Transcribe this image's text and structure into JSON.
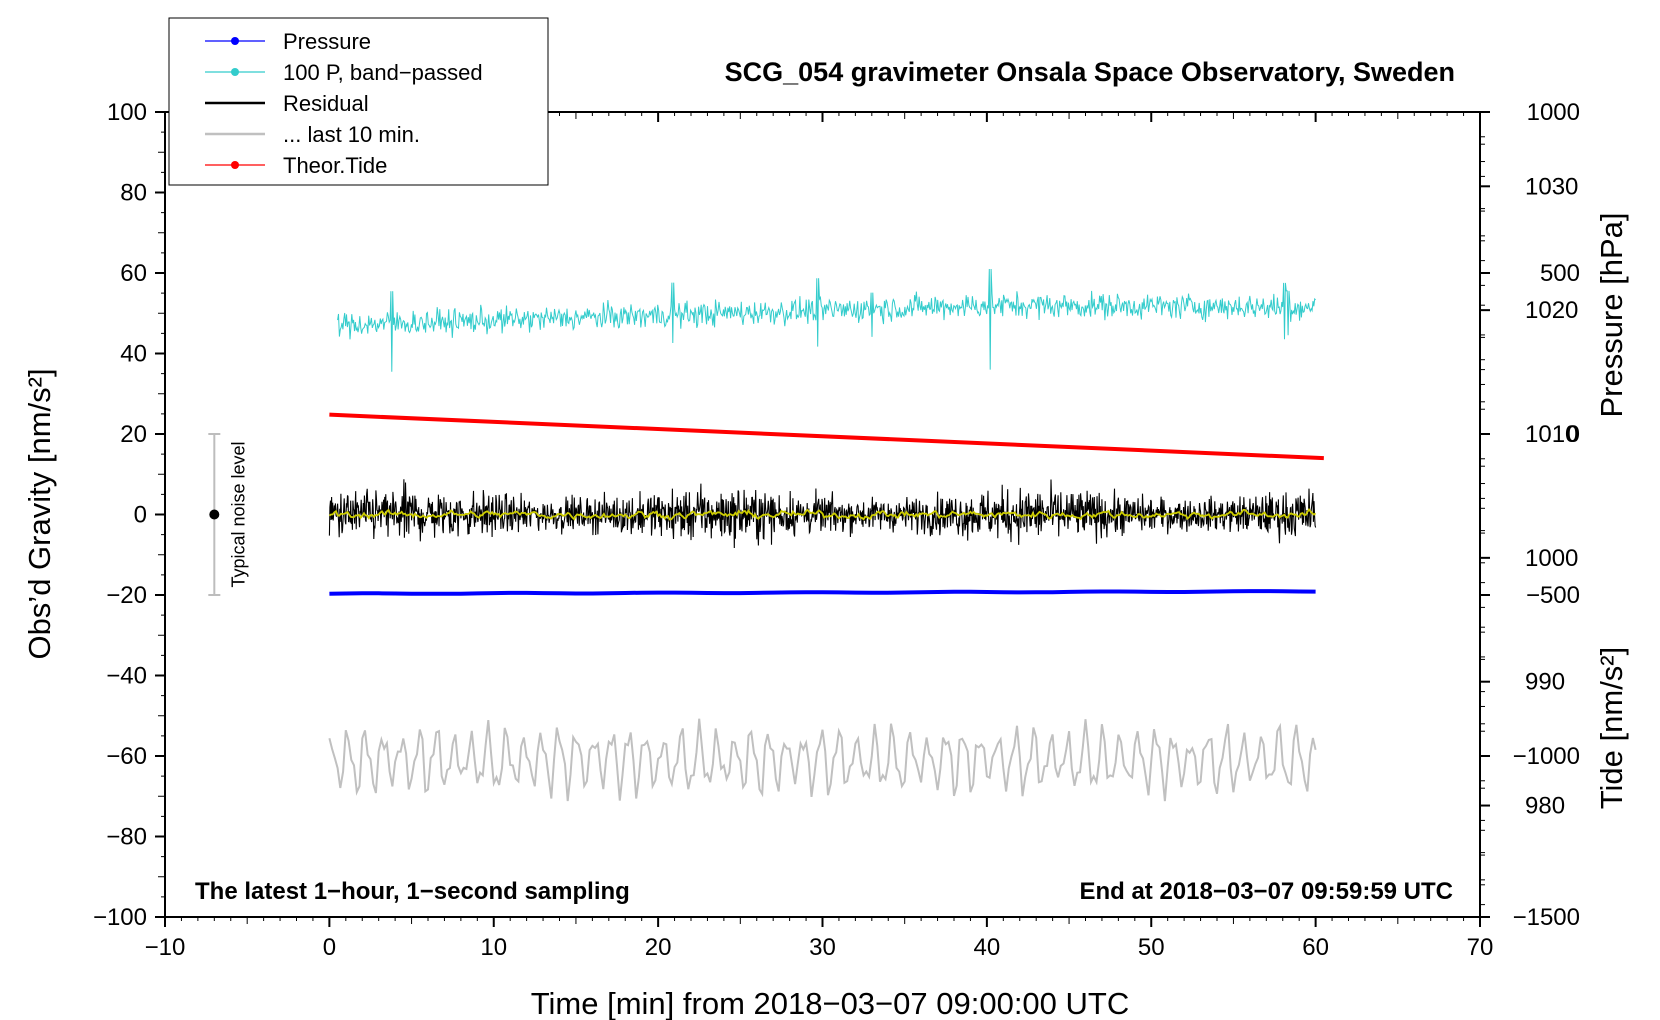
{
  "chart_data": {
    "type": "line",
    "title": "SCG_054 gravimeter Onsala Space Observatory, Sweden",
    "xlabel": "Time [min] from 2018−03−07 09:00:00 UTC",
    "ylabel_left": "Obs’d Gravity [nm/s²]",
    "ylabel_right_upper": "Pressure [hPa]",
    "ylabel_right_lower": "Tide [nm/s²]",
    "xlim": [
      -10,
      70
    ],
    "ylim": [
      -100,
      100
    ],
    "pressure_lim": [
      971,
      1036
    ],
    "tide_lim": [
      -1500,
      1000
    ],
    "x_ticks": [
      "−10",
      "0",
      "10",
      "20",
      "30",
      "40",
      "50",
      "60",
      "70"
    ],
    "x_tick_values": [
      -10,
      0,
      10,
      20,
      30,
      40,
      50,
      60,
      70
    ],
    "y_ticks": [
      "100",
      "80",
      "60",
      "40",
      "20",
      "0",
      "−20",
      "−40",
      "−60",
      "−80",
      "−100"
    ],
    "y_tick_values": [
      100,
      80,
      60,
      40,
      20,
      0,
      -20,
      -40,
      -60,
      -80,
      -100
    ],
    "pressure_ticks": [
      "1030",
      "1020",
      "1010",
      "1000",
      "990",
      "980"
    ],
    "pressure_tick_values": [
      1030,
      1020,
      1010,
      1000,
      990,
      980
    ],
    "tide_ticks": [
      "1000",
      "500",
      "0",
      "−500",
      "−1000",
      "−1500"
    ],
    "tide_tick_values": [
      1000,
      500,
      0,
      -500,
      -1000,
      -1500
    ],
    "legend": [
      {
        "label": "Pressure",
        "color": "#0000ff",
        "marker": true
      },
      {
        "label": "100 P, band−passed",
        "color": "#33cccc",
        "marker": true
      },
      {
        "label": "Residual",
        "color": "#000000",
        "marker": false
      },
      {
        "label": "... last 10 min.",
        "color": "#c0c0c0",
        "marker": false
      },
      {
        "label": "Theor.Tide",
        "color": "#ff0000",
        "marker": true
      }
    ],
    "series": [
      {
        "name": "Pressure",
        "color": "#0000ff",
        "axis": "pressure",
        "x_range": [
          0,
          60
        ],
        "start": 997.1,
        "end": 997.3
      },
      {
        "name": "100 P, band-passed",
        "color": "#33cccc",
        "axis": "left",
        "x_range": [
          0.5,
          60
        ],
        "baseline": [
          47,
          52
        ],
        "amplitude": 3.5
      },
      {
        "name": "Residual",
        "color": "#000000",
        "axis": "left",
        "x_range": [
          0,
          60
        ],
        "baseline": 0,
        "amplitude": 5
      },
      {
        "name": "Residual smoothed",
        "color": "#cccc00",
        "axis": "left",
        "x_range": [
          0,
          60
        ],
        "baseline": 0,
        "amplitude": 1.2
      },
      {
        "name": "... last 10 min.",
        "color": "#c0c0c0",
        "axis": "left",
        "x_range": [
          0,
          60
        ],
        "baseline": -61,
        "amplitude": 6
      },
      {
        "name": "Theor.Tide",
        "color": "#ff0000",
        "axis": "tide",
        "x_range": [
          0,
          60.5
        ],
        "start": 60,
        "end": -75
      }
    ],
    "noise_bar": {
      "x": -7,
      "center": 0,
      "half_range": 20,
      "label": "Typical noise level"
    },
    "annotations": {
      "bottom_left": "The latest 1−hour, 1−second sampling",
      "bottom_right": "End at 2018−03−07 09:59:59 UTC"
    }
  }
}
